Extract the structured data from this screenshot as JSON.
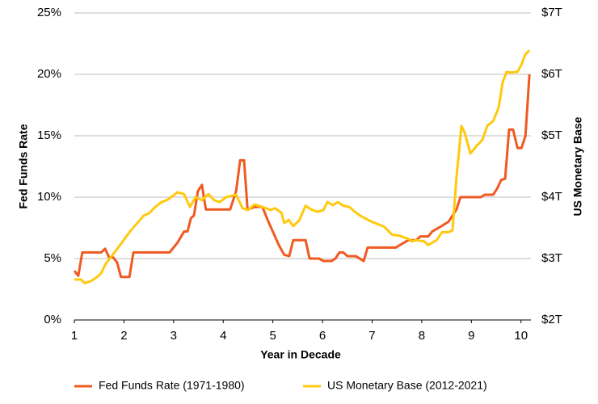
{
  "chart_data": {
    "type": "line",
    "xlabel": "Year in Decade",
    "ylabel": "Fed Funds Rate",
    "y2label": "US Monetary Base",
    "xlim": [
      1,
      10.2
    ],
    "xticks": [
      1,
      2,
      3,
      4,
      5,
      6,
      7,
      8,
      9,
      10
    ],
    "ylim": [
      0,
      25
    ],
    "yticks": [
      {
        "value": 0,
        "label": "0%"
      },
      {
        "value": 5,
        "label": "5%"
      },
      {
        "value": 10,
        "label": "10%"
      },
      {
        "value": 15,
        "label": "15%"
      },
      {
        "value": 20,
        "label": "20%"
      },
      {
        "value": 25,
        "label": "25%"
      }
    ],
    "y2lim": [
      2,
      7
    ],
    "y2ticks": [
      {
        "value": 2,
        "label": "$2T"
      },
      {
        "value": 3,
        "label": "$3T"
      },
      {
        "value": 4,
        "label": "$4T"
      },
      {
        "value": 5,
        "label": "$5T"
      },
      {
        "value": 6,
        "label": "$6T"
      },
      {
        "value": 7,
        "label": "$7T"
      }
    ],
    "grid": true,
    "legend": "bottom",
    "series": [
      {
        "name": "Fed Funds Rate (1971-1980)",
        "color": "#f05a22",
        "x": [
          1.0,
          1.08,
          1.16,
          1.54,
          1.62,
          1.7,
          1.78,
          1.86,
          1.94,
          2.11,
          2.19,
          2.92,
          3.08,
          3.21,
          3.28,
          3.35,
          3.41,
          3.49,
          3.57,
          3.65,
          4.14,
          4.26,
          4.34,
          4.42,
          4.49,
          4.63,
          4.79,
          4.91,
          5.12,
          5.23,
          5.33,
          5.41,
          5.66,
          5.74,
          5.93,
          6.02,
          6.18,
          6.26,
          6.34,
          6.42,
          6.5,
          6.67,
          6.83,
          6.91,
          7.48,
          7.56,
          7.73,
          7.89,
          7.97,
          8.13,
          8.21,
          8.38,
          8.54,
          8.7,
          8.78,
          8.95,
          9.19,
          9.27,
          9.44,
          9.52,
          9.6,
          9.68,
          9.76,
          9.84,
          9.93,
          10.01,
          10.09,
          10.17
        ],
        "values": [
          4,
          3.6,
          5.5,
          5.5,
          5.8,
          5.1,
          5.1,
          4.7,
          3.5,
          3.5,
          5.5,
          5.5,
          6.3,
          7.2,
          7.2,
          8.3,
          8.5,
          10.5,
          11,
          9,
          9,
          10.5,
          13,
          13,
          9,
          9.2,
          9.2,
          8,
          6.1,
          5.3,
          5.2,
          6.5,
          6.5,
          5,
          5,
          4.8,
          4.8,
          5,
          5.5,
          5.5,
          5.2,
          5.2,
          4.8,
          5.9,
          5.9,
          6.1,
          6.5,
          6.5,
          6.8,
          6.8,
          7.2,
          7.6,
          8,
          9,
          10,
          10,
          10,
          10.2,
          10.2,
          10.7,
          11.4,
          11.5,
          15.5,
          15.5,
          14,
          14,
          15,
          20
        ]
      },
      {
        "name": "US Monetary Base (2012-2021)",
        "color": "#ffc90e",
        "axis": "y2",
        "x": [
          1.0,
          1.13,
          1.21,
          1.33,
          1.46,
          1.54,
          1.62,
          1.78,
          1.94,
          2.11,
          2.27,
          2.4,
          2.51,
          2.63,
          2.76,
          2.86,
          2.95,
          3.08,
          3.21,
          3.33,
          3.44,
          3.57,
          3.7,
          3.82,
          3.93,
          4.06,
          4.26,
          4.39,
          4.5,
          4.63,
          4.79,
          4.96,
          5.04,
          5.17,
          5.23,
          5.32,
          5.41,
          5.53,
          5.66,
          5.77,
          5.9,
          6.02,
          6.1,
          6.21,
          6.31,
          6.42,
          6.54,
          6.67,
          6.8,
          6.99,
          7.24,
          7.4,
          7.56,
          7.73,
          7.81,
          7.89,
          8.05,
          8.13,
          8.3,
          8.41,
          8.54,
          8.62,
          8.7,
          8.8,
          8.87,
          8.98,
          9.11,
          9.22,
          9.32,
          9.44,
          9.55,
          9.63,
          9.71,
          9.79,
          9.93,
          10.01,
          10.09,
          10.17
        ],
        "values": [
          2.66,
          2.66,
          2.6,
          2.63,
          2.7,
          2.76,
          2.9,
          3.07,
          3.24,
          3.43,
          3.58,
          3.7,
          3.74,
          3.84,
          3.92,
          3.95,
          4.0,
          4.08,
          4.05,
          3.84,
          4.0,
          3.95,
          4.05,
          3.95,
          3.92,
          4.0,
          4.04,
          3.82,
          3.79,
          3.88,
          3.84,
          3.79,
          3.82,
          3.75,
          3.58,
          3.63,
          3.53,
          3.62,
          3.86,
          3.8,
          3.76,
          3.79,
          3.92,
          3.87,
          3.92,
          3.86,
          3.84,
          3.75,
          3.68,
          3.6,
          3.52,
          3.39,
          3.37,
          3.32,
          3.28,
          3.3,
          3.28,
          3.22,
          3.3,
          3.43,
          3.43,
          3.46,
          4.32,
          5.16,
          5.04,
          4.71,
          4.84,
          4.93,
          5.16,
          5.24,
          5.46,
          5.87,
          6.04,
          6.03,
          6.04,
          6.16,
          6.33,
          6.39
        ]
      }
    ]
  }
}
